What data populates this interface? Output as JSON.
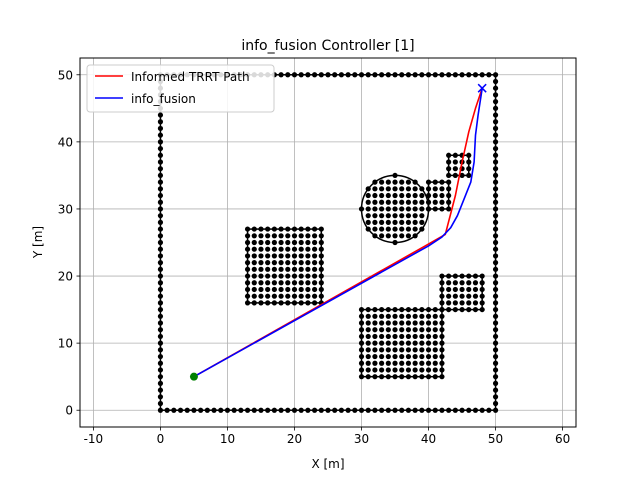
{
  "chart_data": {
    "type": "line",
    "title": "info_fusion Controller [1]",
    "xlabel": "X [m]",
    "ylabel": "Y [m]",
    "xlim": [
      -12,
      62
    ],
    "ylim": [
      -2.5,
      52.5
    ],
    "xticks": [
      -10,
      0,
      10,
      20,
      30,
      40,
      50,
      60
    ],
    "yticks": [
      0,
      10,
      20,
      30,
      40,
      50
    ],
    "grid": true,
    "legend_position": "top-left",
    "series": [
      {
        "name": "Informed TRRT Path",
        "color": "#ff0000",
        "points": [
          [
            5,
            5
          ],
          [
            39.5,
            24.5
          ],
          [
            42.5,
            26.2
          ],
          [
            44,
            32
          ],
          [
            45,
            37
          ],
          [
            46,
            41.5
          ],
          [
            47,
            45
          ],
          [
            48,
            48
          ]
        ]
      },
      {
        "name": "info_fusion",
        "color": "#0000ff",
        "points": [
          [
            5,
            5
          ],
          [
            40,
            24.5
          ],
          [
            42,
            25.8
          ],
          [
            43.3,
            27.2
          ],
          [
            44.3,
            29
          ],
          [
            45.3,
            31.5
          ],
          [
            46.3,
            34
          ],
          [
            46.8,
            37
          ],
          [
            47,
            41
          ],
          [
            47.4,
            44
          ],
          [
            48,
            48
          ]
        ]
      }
    ],
    "start_marker": {
      "x": 5,
      "y": 5,
      "color": "#008000"
    },
    "goal_marker": {
      "x": 48,
      "y": 48,
      "color": "#0000ff"
    },
    "obstacles": [
      {
        "shape": "boundary",
        "x0": 0,
        "x1": 50,
        "y0": 0,
        "y1": 50
      },
      {
        "shape": "rect",
        "x0": 13,
        "x1": 24,
        "y0": 16,
        "y1": 27
      },
      {
        "shape": "rect",
        "x0": 30,
        "x1": 42,
        "y0": 5,
        "y1": 15
      },
      {
        "shape": "rect",
        "x0": 42,
        "x1": 48,
        "y0": 15,
        "y1": 20
      },
      {
        "shape": "rect",
        "x0": 40,
        "x1": 43,
        "y0": 30,
        "y1": 34
      },
      {
        "shape": "rect",
        "x0": 43,
        "x1": 46,
        "y0": 35,
        "y1": 38
      },
      {
        "shape": "circle",
        "cx": 35,
        "cy": 30,
        "r": 5
      }
    ],
    "colors": {
      "obstacle": "#000000",
      "grid": "#b0b0b0"
    }
  }
}
